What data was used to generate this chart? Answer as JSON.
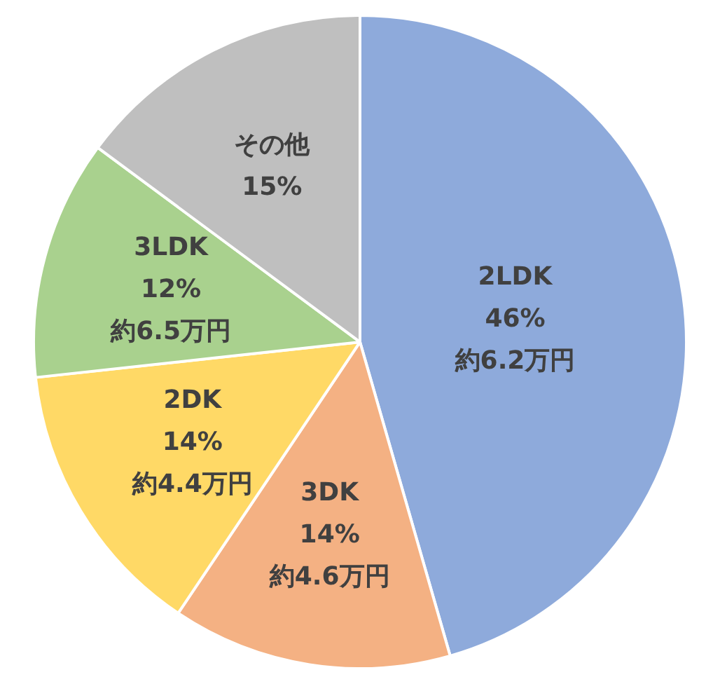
{
  "chart_data": {
    "type": "pie",
    "categories": [
      "2LDK",
      "3DK",
      "2DK",
      "3LDK",
      "その他"
    ],
    "values": [
      46,
      14,
      14,
      12,
      15
    ],
    "value_labels": [
      "46%",
      "14%",
      "14%",
      "12%",
      "15%"
    ],
    "colors": [
      "#8eaadb",
      "#f4b183",
      "#ffd966",
      "#a9d18e",
      "#bfbfbf"
    ],
    "annotations": [
      {
        "text": "約6.2万円",
        "x": "2LDK"
      },
      {
        "text": "約4.6万円",
        "x": "3DK"
      },
      {
        "text": "約4.4万円",
        "x": "2DK"
      },
      {
        "text": "約6.5万円",
        "x": "3LDK"
      }
    ],
    "legend": false
  }
}
